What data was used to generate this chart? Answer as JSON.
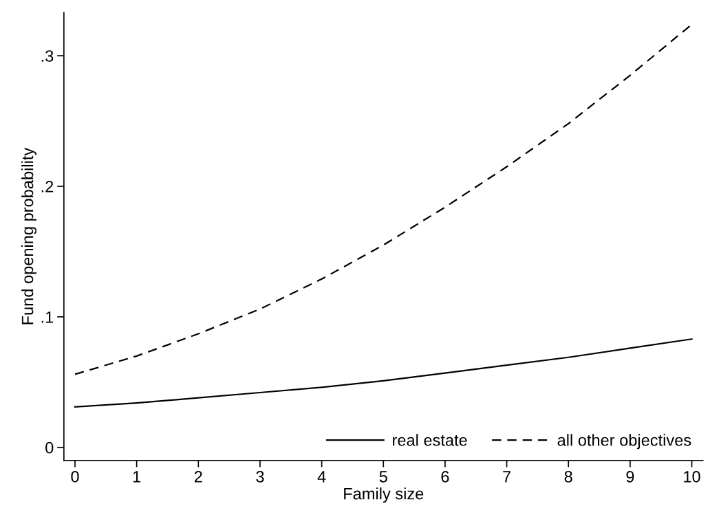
{
  "chart_data": {
    "type": "line",
    "xlabel": "Family size",
    "ylabel": "Fund opening probability",
    "x": [
      0,
      1,
      2,
      3,
      4,
      5,
      6,
      7,
      8,
      9,
      10
    ],
    "series": [
      {
        "name": "real estate",
        "color": "#000000",
        "line_style": "solid",
        "values": [
          0.031,
          0.034,
          0.038,
          0.042,
          0.046,
          0.051,
          0.057,
          0.063,
          0.069,
          0.076,
          0.083
        ]
      },
      {
        "name": "all other objectives",
        "color": "#000000",
        "line_style": "dashed",
        "values": [
          0.056,
          0.07,
          0.087,
          0.106,
          0.129,
          0.155,
          0.184,
          0.215,
          0.248,
          0.285,
          0.324
        ]
      }
    ],
    "xlim": [
      -0.18,
      10.18
    ],
    "xticks": [
      0,
      1,
      2,
      3,
      4,
      5,
      6,
      7,
      8,
      9,
      10
    ],
    "ylim": [
      -0.01,
      0.333
    ],
    "yticks": [
      {
        "value": 0,
        "label": "0"
      },
      {
        "value": 0.1,
        "label": ".1"
      },
      {
        "value": 0.2,
        "label": ".2"
      },
      {
        "value": 0.3,
        "label": ".3"
      }
    ],
    "grid": false,
    "legend": "bottom right",
    "marker": "none"
  }
}
